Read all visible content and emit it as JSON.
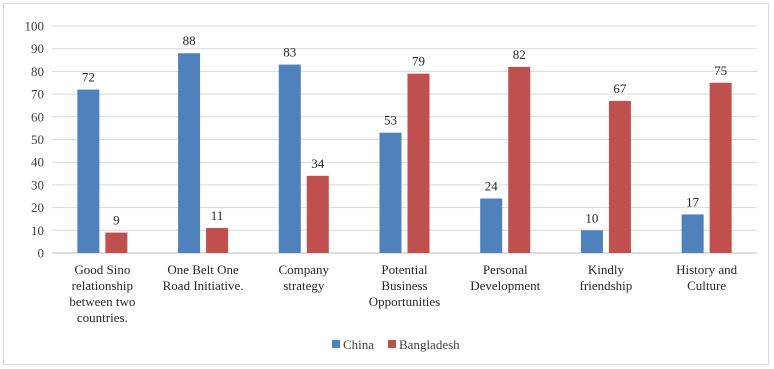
{
  "chart_data": {
    "type": "bar",
    "categories": [
      [
        "Good Sino",
        "relationship",
        "between two",
        "countries."
      ],
      [
        "One Belt One",
        "Road Initiative."
      ],
      [
        "Company",
        "strategy"
      ],
      [
        "Potential",
        "Business",
        "Opportunities"
      ],
      [
        "Personal",
        "Development"
      ],
      [
        "Kindly",
        "friendship"
      ],
      [
        "History and",
        "Culture"
      ]
    ],
    "series": [
      {
        "name": "China",
        "color": "#4f81bd",
        "values": [
          72,
          88,
          83,
          53,
          24,
          10,
          17
        ]
      },
      {
        "name": "Bangladesh",
        "color": "#c0504d",
        "values": [
          9,
          11,
          34,
          79,
          82,
          67,
          75
        ]
      }
    ],
    "ylim": [
      0,
      100
    ],
    "yticks": [
      0,
      10,
      20,
      30,
      40,
      50,
      60,
      70,
      80,
      90,
      100
    ],
    "grid": true,
    "legend": "bottom"
  }
}
